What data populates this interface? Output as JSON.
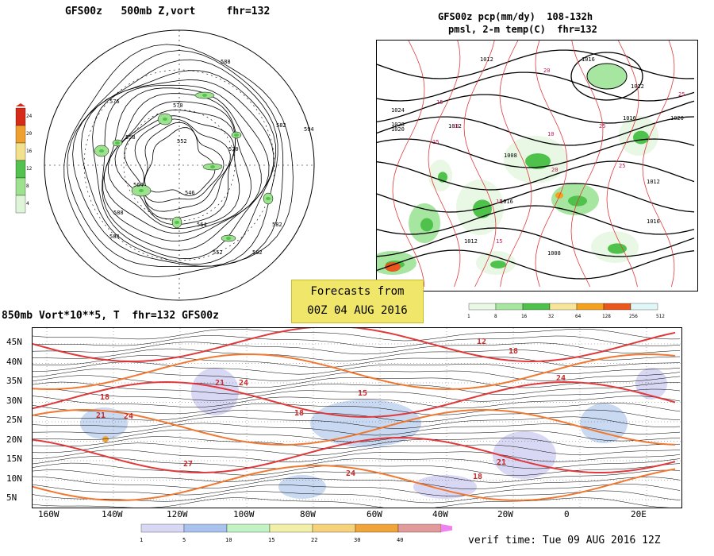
{
  "polar_title": "GFS00z   500mb Z,vort     fhr=132",
  "na_title_line1": "GFS00z pcp(mm/dy)  108-132h",
  "na_title_line2": "pmsl, 2-m temp(C)  fhr=132",
  "tropical_title": "850mb Vort*10**5, T  fhr=132 GFS00z",
  "forecasts_from_line1": "Forecasts from",
  "forecasts_from_line2": "00Z 04 AUG 2016",
  "verif_time": "verif time: Tue 09 AUG 2016 12Z",
  "vort_scale": {
    "labels": [
      "24",
      "20",
      "16",
      "12",
      "8",
      "4"
    ],
    "colors": [
      "#d72b1a",
      "#f0a030",
      "#f2e08c",
      "#53c24f",
      "#9de28f",
      "#dff5d8"
    ]
  },
  "precip_scale": {
    "labels": [
      "1",
      "8",
      "16",
      "32",
      "64",
      "128",
      "256",
      "512"
    ],
    "colors": [
      "#e8f8e4",
      "#a6e6a0",
      "#4fc24c",
      "#f7e59a",
      "#f3a21f",
      "#e9561e",
      "#dff7f7"
    ]
  },
  "trop_scale": {
    "labels": [
      "1",
      "5",
      "10",
      "15",
      "22",
      "30",
      "40"
    ],
    "colors": [
      "#d8d8f5",
      "#a9c3ee",
      "#c2f3c4",
      "#f2f0a8",
      "#f6d27a",
      "#f0a53a",
      "#e29b9b"
    ]
  },
  "polar_contours": [
    "588",
    "576",
    "570",
    "582",
    "558",
    "552",
    "564",
    "546",
    "570",
    "588",
    "594",
    "588",
    "582",
    "552",
    "564",
    "582"
  ],
  "na_isobars": [
    "1012",
    "1016",
    "1024",
    "1028",
    "1020",
    "1012",
    "1008",
    "1012",
    "1016",
    "1020",
    "1012",
    "1016",
    "1012",
    "1008",
    "1016"
  ],
  "na_temps": [
    "15",
    "10",
    "20",
    "25",
    "15",
    "10",
    "25",
    "15",
    "20",
    "25",
    "25"
  ],
  "trop_temps": [
    "12",
    "18",
    "21",
    "24",
    "18",
    "15",
    "18",
    "21",
    "24",
    "27",
    "24",
    "18",
    "21",
    "24"
  ],
  "lat_labels": [
    "45N",
    "40N",
    "35N",
    "30N",
    "25N",
    "20N",
    "15N",
    "10N",
    "5N"
  ],
  "lon_labels": [
    "160W",
    "140W",
    "120W",
    "100W",
    "80W",
    "60W",
    "40W",
    "20W",
    "0",
    "20E"
  ]
}
